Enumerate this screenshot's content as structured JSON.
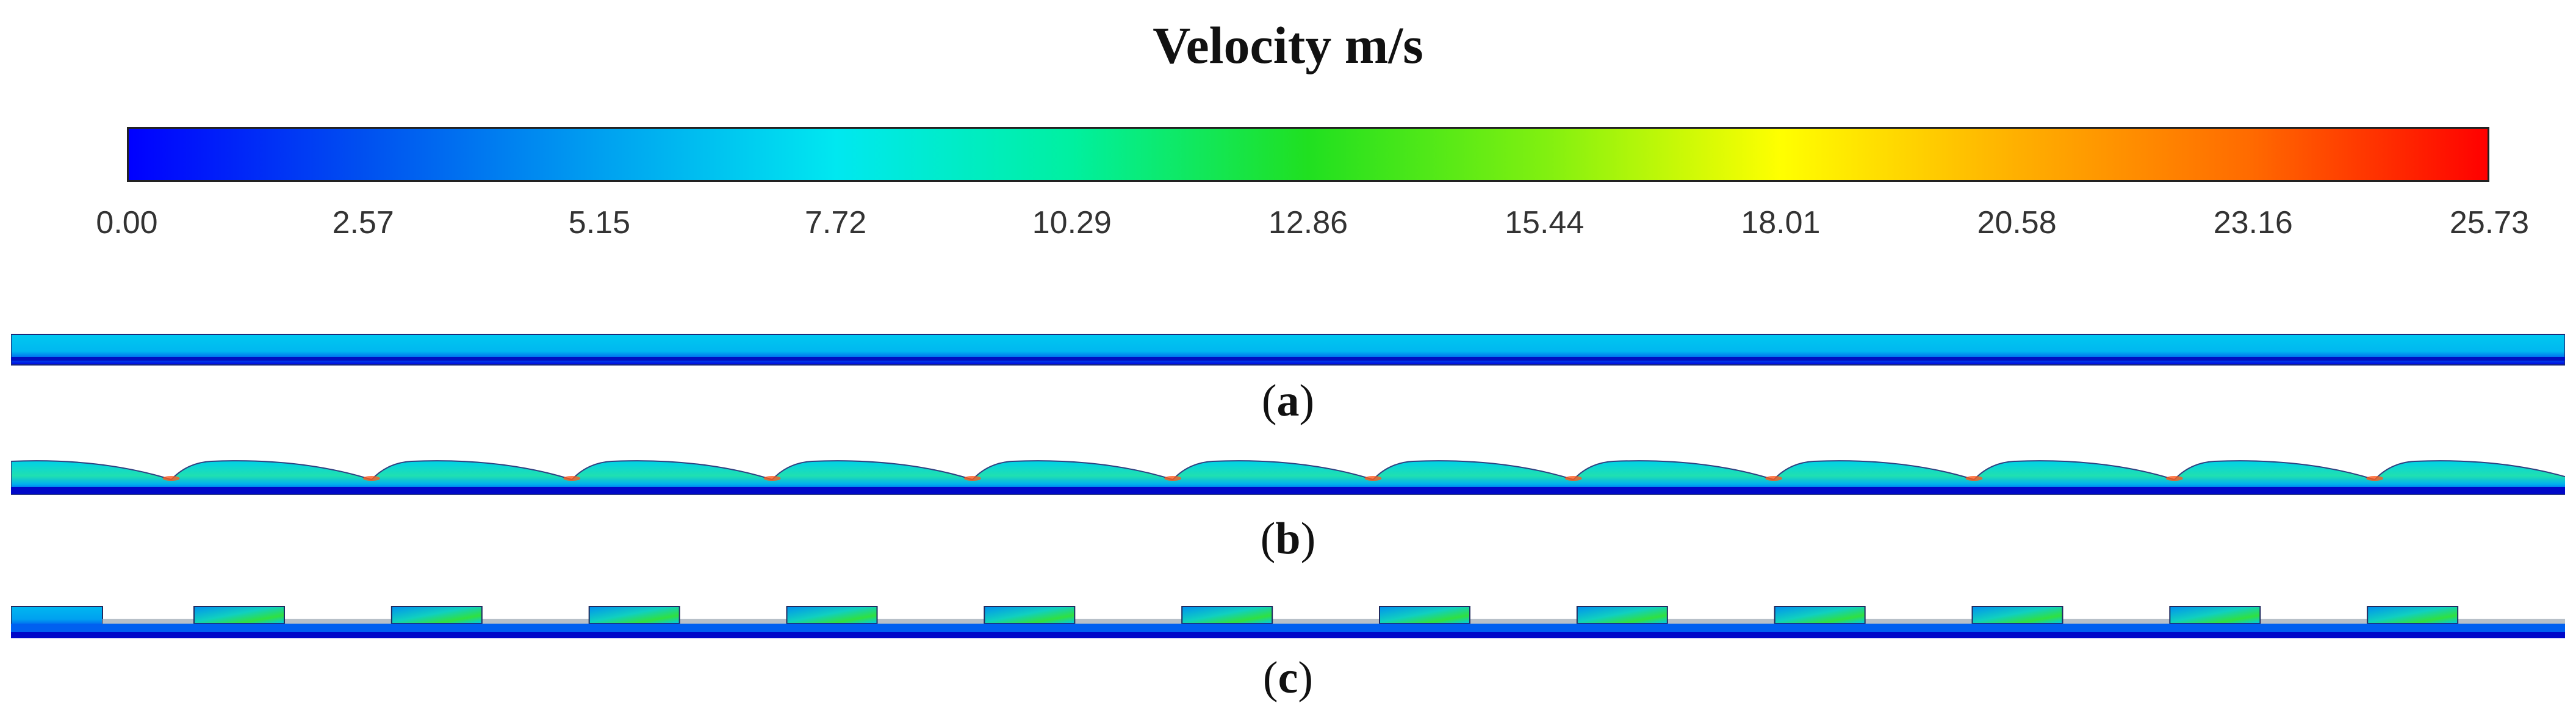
{
  "title": "Velocity m/s",
  "colorbar": {
    "min": 0.0,
    "max": 25.73,
    "tick_labels": [
      "0.00",
      "2.57",
      "5.15",
      "7.72",
      "10.29",
      "12.86",
      "15.44",
      "18.01",
      "20.58",
      "23.16",
      "25.73"
    ],
    "colors": [
      "#0000ff",
      "#0050f0",
      "#00a0f0",
      "#00e8f0",
      "#00f0a0",
      "#20e020",
      "#80f010",
      "#ffff00",
      "#ffb000",
      "#ff6a00",
      "#ff0000"
    ]
  },
  "panels": [
    {
      "id": "a",
      "label": "a",
      "geometry": "smooth channel"
    },
    {
      "id": "b",
      "label": "b",
      "geometry": "wavy surface",
      "repeats": 13
    },
    {
      "id": "c",
      "label": "c",
      "geometry": "rectangular ribs",
      "repeats": 13
    }
  ]
}
